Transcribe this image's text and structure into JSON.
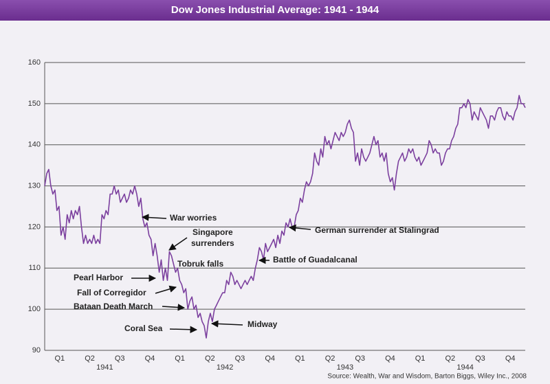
{
  "chart_data": {
    "type": "line",
    "title": "Dow Jones Industrial Average: 1941 - 1944",
    "source": "Source: Wealth, War and Wisdom, Barton Biggs, Wiley Inc., 2008",
    "color": "#7b3f9e",
    "grid": true,
    "ylim": [
      90,
      160
    ],
    "yticks": [
      90,
      100,
      110,
      120,
      130,
      140,
      150,
      160
    ],
    "quarters": [
      "Q1",
      "Q2",
      "Q3",
      "Q4",
      "Q1",
      "Q2",
      "Q3",
      "Q4",
      "Q1",
      "Q2",
      "Q3",
      "Q4",
      "Q1",
      "Q2",
      "Q3",
      "Q4"
    ],
    "years": [
      "1941",
      "1942",
      "1943",
      "1944"
    ],
    "values": [
      130,
      133,
      134,
      130,
      128,
      129,
      124,
      125,
      118,
      120,
      117,
      123,
      121,
      124,
      122,
      124,
      123,
      125,
      120,
      116,
      118,
      116,
      117,
      116,
      118,
      116,
      117,
      116,
      123,
      122,
      124,
      123,
      128,
      128,
      130,
      128,
      129,
      126,
      127,
      128,
      126,
      127,
      129,
      128,
      130,
      128,
      125,
      127,
      122,
      120,
      121,
      118,
      117,
      113,
      116,
      113,
      109,
      112,
      107,
      110,
      107,
      114,
      113,
      111,
      109,
      110,
      107,
      106,
      104,
      105,
      100,
      102,
      103,
      100,
      101,
      98,
      99,
      97,
      96,
      93,
      97,
      99,
      97,
      100,
      101,
      102,
      103,
      104,
      104,
      107,
      106,
      109,
      108,
      106,
      107,
      106,
      105,
      106,
      107,
      106,
      107,
      108,
      107,
      110,
      112,
      115,
      114,
      112,
      116,
      114,
      115,
      116,
      117,
      115,
      118,
      116,
      119,
      118,
      121,
      120,
      122,
      120,
      120,
      123,
      124,
      127,
      126,
      129,
      131,
      130,
      131,
      133,
      138,
      136,
      135,
      139,
      137,
      142,
      140,
      141,
      139,
      141,
      143,
      142,
      141,
      143,
      142,
      143,
      145,
      146,
      144,
      143,
      136,
      138,
      135,
      139,
      137,
      136,
      137,
      138,
      140,
      142,
      140,
      141,
      137,
      138,
      136,
      138,
      133,
      131,
      132,
      129,
      133,
      136,
      137,
      138,
      136,
      137,
      139,
      138,
      139,
      137,
      136,
      137,
      135,
      136,
      137,
      138,
      141,
      140,
      138,
      139,
      138,
      138,
      135,
      136,
      138,
      139,
      139,
      141,
      142,
      144,
      145,
      149,
      149,
      150,
      149,
      151,
      150,
      146,
      148,
      147,
      146,
      149,
      148,
      147,
      146,
      144,
      147,
      147,
      146,
      148,
      149,
      149,
      147,
      146,
      148,
      147,
      147,
      146,
      148,
      149,
      152,
      150,
      150,
      149
    ],
    "annotations": [
      {
        "lines": [
          "War worries"
        ]
      },
      {
        "lines": [
          "Singapore",
          "surrenders"
        ]
      },
      {
        "lines": [
          "Tobruk falls"
        ]
      },
      {
        "lines": [
          "Pearl Harbor"
        ]
      },
      {
        "lines": [
          "Fall of Corregidor"
        ]
      },
      {
        "lines": [
          "Bataan Death March"
        ]
      },
      {
        "lines": [
          "Coral Sea"
        ]
      },
      {
        "lines": [
          "Midway"
        ]
      },
      {
        "lines": [
          "German surrender at Stalingrad"
        ]
      },
      {
        "lines": [
          "Battle of Guadalcanal"
        ]
      }
    ]
  }
}
